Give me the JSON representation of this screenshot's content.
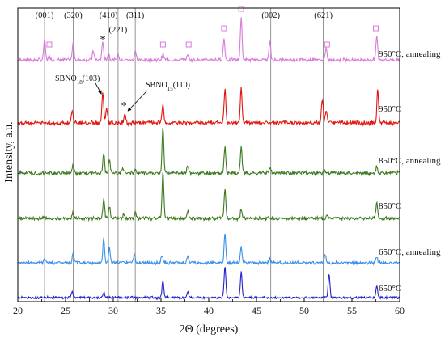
{
  "chart_data": {
    "type": "line",
    "xlabel": "2Θ (degrees)",
    "ylabel": "Intensity, a.u.",
    "xlim": [
      20,
      60
    ],
    "xticks": [
      "20",
      "25",
      "30",
      "35",
      "40",
      "45",
      "50",
      "55",
      "60"
    ],
    "y_ticks_shown": false,
    "reference_lines": [
      {
        "label": "(001)",
        "x": 22.8
      },
      {
        "label": "(320)",
        "x": 25.8
      },
      {
        "label": "(410)",
        "x": 29.5
      },
      {
        "label": "(221)",
        "x": 30.5
      },
      {
        "label": "(311)",
        "x": 32.3
      },
      {
        "label": "(002)",
        "x": 46.5
      },
      {
        "label": "(621)",
        "x": 52.0
      }
    ],
    "series": [
      {
        "name": "950°C, annealing",
        "color": "#d97ad9",
        "noise": 1.6,
        "noise_seed": 7,
        "peaks": [
          [
            22.8,
            26
          ],
          [
            23.3,
            5
          ],
          [
            25.8,
            22
          ],
          [
            27.9,
            11
          ],
          [
            28.9,
            22
          ],
          [
            29.5,
            9
          ],
          [
            30.5,
            7
          ],
          [
            32.3,
            12
          ],
          [
            35.2,
            7
          ],
          [
            37.8,
            7
          ],
          [
            41.6,
            26
          ],
          [
            43.4,
            52
          ],
          [
            46.4,
            22
          ],
          [
            52.3,
            14
          ],
          [
            57.6,
            30
          ]
        ]
      },
      {
        "name": "950°C",
        "color": "#e0150f",
        "noise": 2.0,
        "noise_seed": 13,
        "peaks": [
          [
            25.7,
            16
          ],
          [
            28.9,
            38
          ],
          [
            29.3,
            18
          ],
          [
            31.2,
            12
          ],
          [
            35.2,
            24
          ],
          [
            41.7,
            42
          ],
          [
            43.4,
            44
          ],
          [
            51.9,
            30
          ],
          [
            52.3,
            16
          ],
          [
            57.7,
            40
          ]
        ]
      },
      {
        "name": "850°C, annealing",
        "color": "#3c7a1e",
        "noise": 1.8,
        "noise_seed": 21,
        "peaks": [
          [
            25.8,
            10
          ],
          [
            29.0,
            24
          ],
          [
            29.6,
            16
          ],
          [
            31.0,
            6
          ],
          [
            32.3,
            5
          ],
          [
            35.2,
            56
          ],
          [
            37.8,
            8
          ],
          [
            41.7,
            32
          ],
          [
            43.4,
            34
          ],
          [
            46.4,
            6
          ],
          [
            52.1,
            5
          ],
          [
            57.6,
            8
          ]
        ]
      },
      {
        "name": "850°C",
        "color": "#3c7a1e",
        "noise": 1.7,
        "noise_seed": 33,
        "peaks": [
          [
            25.8,
            8
          ],
          [
            29.0,
            24
          ],
          [
            29.6,
            14
          ],
          [
            31.1,
            6
          ],
          [
            32.3,
            8
          ],
          [
            35.2,
            58
          ],
          [
            37.8,
            10
          ],
          [
            41.7,
            36
          ],
          [
            43.4,
            12
          ],
          [
            52.4,
            6
          ],
          [
            57.6,
            20
          ]
        ]
      },
      {
        "name": "650°C, annealing",
        "color": "#3b8fe8",
        "noise": 1.5,
        "noise_seed": 41,
        "peaks": [
          [
            22.8,
            6
          ],
          [
            25.8,
            12
          ],
          [
            29.0,
            30
          ],
          [
            29.6,
            18
          ],
          [
            32.2,
            10
          ],
          [
            35.1,
            10
          ],
          [
            37.8,
            8
          ],
          [
            41.7,
            36
          ],
          [
            43.4,
            20
          ],
          [
            46.4,
            5
          ],
          [
            52.2,
            10
          ],
          [
            57.6,
            8
          ]
        ]
      },
      {
        "name": "650°C",
        "color": "#2222cc",
        "noise": 1.2,
        "noise_seed": 55,
        "peaks": [
          [
            25.7,
            8
          ],
          [
            29.0,
            6
          ],
          [
            35.2,
            22
          ],
          [
            37.8,
            6
          ],
          [
            41.7,
            38
          ],
          [
            43.4,
            32
          ],
          [
            52.6,
            30
          ],
          [
            57.6,
            14
          ]
        ]
      }
    ],
    "annotations": [
      {
        "text": "SBNO",
        "sub": "18",
        "suffix": "(103)",
        "x": 29.0
      },
      {
        "text": "SBNO",
        "sub": "15",
        "suffix": "(110)",
        "x": 31.2
      }
    ],
    "asterisk_markers": [
      28.9,
      31.2
    ],
    "square_markers": [
      23.3,
      35.2,
      37.9,
      41.6,
      43.4,
      52.4,
      57.5
    ]
  }
}
